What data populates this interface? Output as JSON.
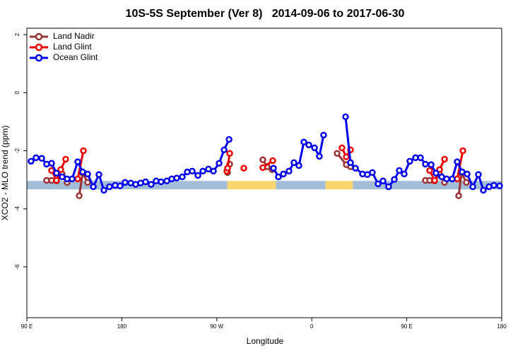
{
  "chart_data": {
    "type": "line",
    "title": "10S-5S September (Ver 8)   2014-09-06 to 2017-06-30",
    "x_label": "Longitude",
    "y_label": "XCO2 - MLO trend (ppm)",
    "xlim": [
      90,
      540
    ],
    "ylim": [
      -7.75,
      2.22
    ],
    "xticks": [
      {
        "value": 90,
        "label": "90 E"
      },
      180,
      {
        "value": 270,
        "label": "90 W"
      },
      {
        "value": 360,
        "label": "0"
      },
      {
        "value": 450,
        "label": "90 E"
      },
      {
        "value": 540,
        "label": "180"
      }
    ],
    "yticks": [
      2,
      0,
      -2,
      -4,
      -6
    ],
    "legend": "top-left",
    "band_y": [
      -3.33,
      -3.04
    ],
    "bands": [
      {
        "x": [
          90,
          280
        ],
        "color": "#a3bcd8"
      },
      {
        "x": [
          280,
          326
        ],
        "color": "#f9d56e"
      },
      {
        "x": [
          326,
          373
        ],
        "color": "#a3bcd8"
      },
      {
        "x": [
          373,
          399
        ],
        "color": "#f9d56e"
      },
      {
        "x": [
          399,
          540
        ],
        "color": "#a3bcd8"
      }
    ],
    "series": [
      {
        "name": "Land Nadir",
        "color": "#993333",
        "x": [
          108.7,
          113.4,
          118.1,
          123.5,
          128.2,
          null,
          139.6,
          142.9,
          147.6,
          null,
          280.2,
          282.2,
          null,
          313.6,
          317.7,
          322.4,
          null,
          384.0,
          392.7,
          396.7,
          null,
          467.7,
          471.7,
          476.4,
          481.1,
          485.8,
          null,
          499.2,
          501.9,
          506.5
        ],
        "values": [
          -3.02,
          -3.02,
          -3.04,
          -2.8,
          -3.09,
          null,
          -3.55,
          -2.77,
          -3.09,
          null,
          -2.75,
          -2.46,
          null,
          -2.31,
          -2.55,
          -2.65,
          null,
          -2.09,
          -2.48,
          -2.55,
          null,
          -3.02,
          -3.02,
          -3.04,
          -2.8,
          -3.09,
          null,
          -3.55,
          -2.77,
          -3.09
        ]
      },
      {
        "name": "Land Glint",
        "color": "#ee0000",
        "x": [
          113.4,
          118.1,
          122.1,
          126.8,
          null,
          138.2,
          143.6,
          null,
          279.5,
          280.2,
          282.2,
          null,
          295.6,
          null,
          313.6,
          323.0,
          null,
          388.6,
          392.7,
          396.7,
          null,
          471.7,
          476.4,
          481.1,
          485.8,
          null,
          497.8,
          503.2
        ],
        "values": [
          -2.68,
          -3.02,
          -2.65,
          -2.29,
          null,
          -2.97,
          -2.0,
          null,
          -2.7,
          -2.6,
          -2.09,
          null,
          -2.6,
          null,
          -2.58,
          -2.34,
          null,
          -1.9,
          -2.21,
          -1.97,
          null,
          -2.68,
          -3.02,
          -2.65,
          -2.29,
          null,
          -2.97,
          -2.0
        ]
      },
      {
        "name": "Ocean Glint",
        "color": "#0000ee",
        "x": [
          94.0,
          98.7,
          104.1,
          108.7,
          113.4,
          118.1,
          123.5,
          128.2,
          132.9,
          138.2,
          142.9,
          147.6,
          153.0,
          158.3,
          163.0,
          168.3,
          173.7,
          178.4,
          183.1,
          188.4,
          193.1,
          197.8,
          202.5,
          207.8,
          212.5,
          217.2,
          222.6,
          227.3,
          232.0,
          237.3,
          242.0,
          246.7,
          252.1,
          256.8,
          262.1,
          266.8,
          272.2,
          276.9,
          281.6,
          null,
          323.7,
          328.4,
          333.1,
          338.4,
          343.1,
          347.8,
          352.5,
          357.2,
          362.6,
          367.2,
          371.2,
          null,
          392.0,
          396.7,
          401.4,
          408.1,
          412.7,
          417.4,
          422.8,
          427.5,
          432.8,
          438.2,
          442.9,
          447.6,
          452.9,
          458.3,
          463.0,
          467.7,
          473.1,
          477.7,
          483.1,
          487.8,
          493.1,
          497.8,
          502.5,
          507.2,
          512.6,
          517.9,
          522.6,
          528.0,
          532.6,
          538.0
        ],
        "values": [
          -2.36,
          -2.24,
          -2.26,
          -2.46,
          -2.43,
          -2.77,
          -2.9,
          -2.97,
          -2.97,
          -2.38,
          -2.73,
          -2.8,
          -3.24,
          -2.82,
          -3.36,
          -3.24,
          -3.19,
          -3.21,
          -3.09,
          -3.11,
          -3.16,
          -3.11,
          -3.07,
          -3.16,
          -3.04,
          -3.07,
          -3.04,
          -2.97,
          -2.94,
          -2.9,
          -2.73,
          -2.7,
          -2.85,
          -2.7,
          -2.63,
          -2.7,
          -2.43,
          -1.97,
          -1.61,
          null,
          -2.6,
          -2.9,
          -2.8,
          -2.7,
          -2.41,
          -2.51,
          -1.7,
          -1.8,
          -1.9,
          -2.19,
          -1.46,
          null,
          -0.83,
          -2.41,
          -2.6,
          -2.8,
          -2.82,
          -2.75,
          -3.14,
          -3.04,
          -3.24,
          -2.99,
          -2.68,
          -2.8,
          -2.36,
          -2.24,
          -2.24,
          -2.46,
          -2.48,
          -2.77,
          -2.9,
          -2.97,
          -2.97,
          -2.38,
          -2.73,
          -2.8,
          -3.24,
          -2.82,
          -3.36,
          -3.24,
          -3.19,
          -3.21
        ]
      }
    ]
  }
}
